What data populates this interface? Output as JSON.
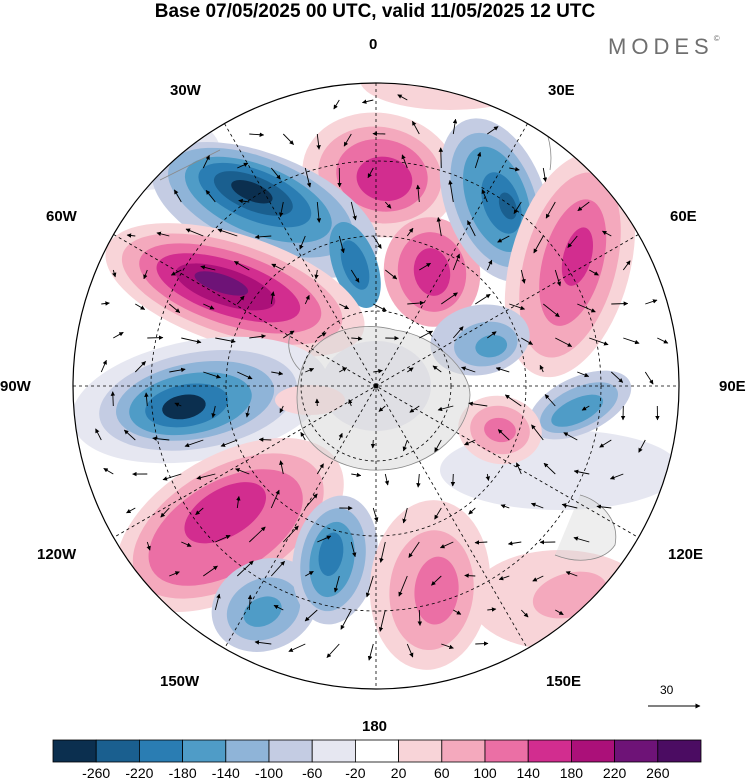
{
  "header": {
    "title": "Base 07/05/2025 00 UTC, valid 11/05/2025 12 UTC",
    "brand": "MODES",
    "brand_mark": "©"
  },
  "map": {
    "projection": "south-polar-stereographic",
    "longitude_labels": {
      "top": "0",
      "top_right": "30E",
      "upper_right": "60E",
      "right": "90E",
      "lower_right": "120E",
      "bottom_right": "150E",
      "bottom": "180",
      "bottom_left": "150W",
      "lower_left": "120W",
      "left": "90W",
      "upper_left": "60W",
      "top_left": "30W"
    },
    "reference_vector": "30",
    "anomaly_centers": [
      {
        "lon": "0",
        "sign": "positive",
        "peak": 180
      },
      {
        "lon": "45W",
        "sign": "negative",
        "peak": -240
      },
      {
        "lon": "70W",
        "sign": "positive",
        "peak": 220
      },
      {
        "lon": "30E",
        "sign": "negative",
        "peak": -180
      },
      {
        "lon": "60E",
        "sign": "positive",
        "peak": 180
      },
      {
        "lon": "95W",
        "sign": "negative",
        "peak": -220
      },
      {
        "lon": "120W",
        "sign": "positive",
        "peak": 180
      },
      {
        "lon": "160W",
        "sign": "negative",
        "peak": -160
      },
      {
        "lon": "165E",
        "sign": "positive",
        "peak": 140
      },
      {
        "lon": "120E",
        "sign": "positive",
        "peak": 100
      },
      {
        "lon": "100E",
        "sign": "positive",
        "peak": 140
      },
      {
        "lon": "75E",
        "sign": "negative",
        "peak": -120
      }
    ]
  },
  "colorbar": {
    "tick_labels": [
      "-260",
      "-220",
      "-180",
      "-140",
      "-100",
      "-60",
      "-20",
      "20",
      "60",
      "100",
      "140",
      "180",
      "220",
      "260"
    ],
    "colors": [
      "#0b2f4f",
      "#1a5f8f",
      "#2a7db3",
      "#4f9cc7",
      "#8fb4d8",
      "#c4cce3",
      "#e6e7f1",
      "#ffffff",
      "#f8d4d8",
      "#f4a9bd",
      "#eb6fa5",
      "#d22d8f",
      "#ab1079",
      "#6e1377",
      "#4b0c62"
    ]
  }
}
